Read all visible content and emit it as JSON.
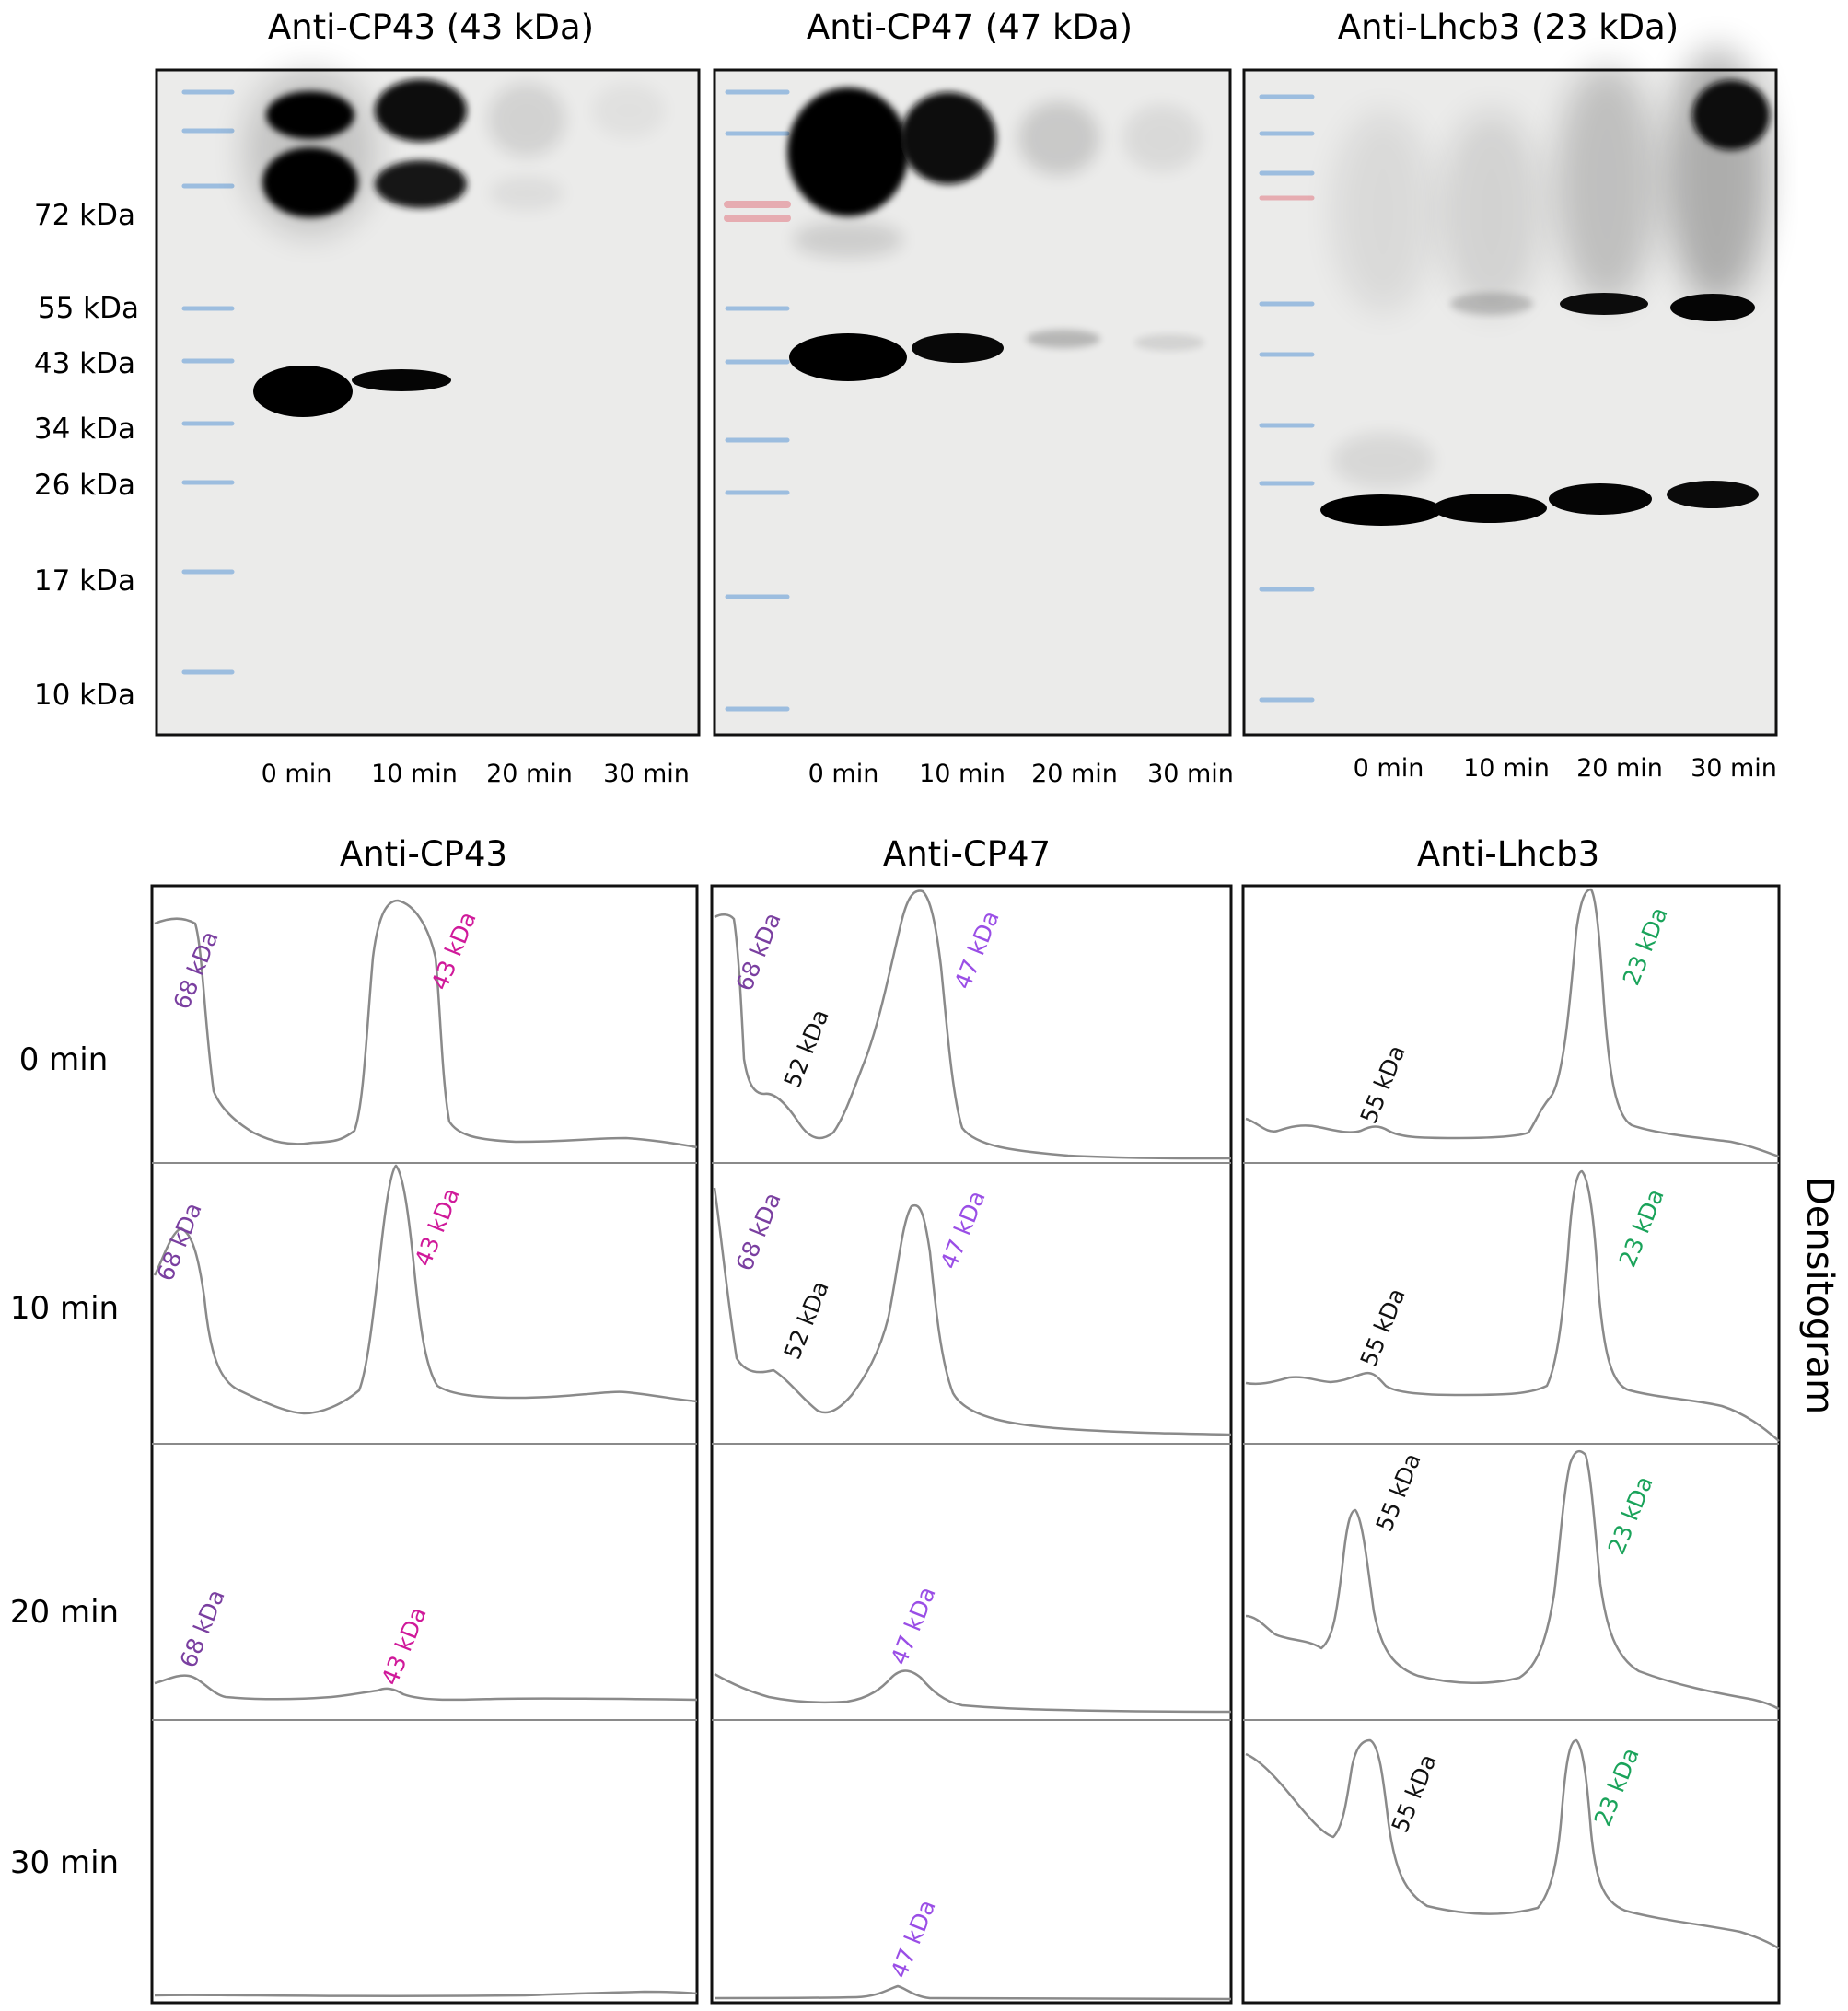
{
  "blots": [
    {
      "title": "Anti-CP43 (43 kDa)",
      "lanes": [
        "0 min",
        "10 min",
        "20 min",
        "30 min"
      ]
    },
    {
      "title": "Anti-CP47 (47 kDa)",
      "lanes": [
        "0 min",
        "10 min",
        "20 min",
        "30 min"
      ]
    },
    {
      "title": "Anti-Lhcb3 (23 kDa)",
      "lanes": [
        "0 min",
        "10 min",
        "20 min",
        "30 min"
      ]
    }
  ],
  "ladder_markers": [
    "72 kDa",
    "55 kDa",
    "43 kDa",
    "34 kDa",
    "26 kDa",
    "17 kDa",
    "10 kDa"
  ],
  "densitogram": {
    "titles": [
      "Anti-CP43",
      "Anti-CP47",
      "Anti-Lhcb3"
    ],
    "rows": [
      "0 min",
      "10 min",
      "20 min",
      "30 min"
    ],
    "side_label": "Densitogram",
    "peak_labels": {
      "cp43_68": "68 kDa",
      "cp43_43": "43 kDa",
      "cp47_68": "68 kDa",
      "cp47_52": "52 kDa",
      "cp47_47": "47 kDa",
      "lhcb3_55": "55 kDa",
      "lhcb3_23": "23 kDa"
    }
  },
  "colors": {
    "kda68": "#7a3fa0",
    "kda43": "#d0199a",
    "kda47": "#9a4ee6",
    "kda52": "#111111",
    "kda55": "#111111",
    "kda23": "#1aa35a",
    "trace": "#8a8a8a",
    "gel_bg": "#ebebea",
    "ladder_blue": "#8fb6de",
    "ladder_red": "#e6a2a8"
  }
}
